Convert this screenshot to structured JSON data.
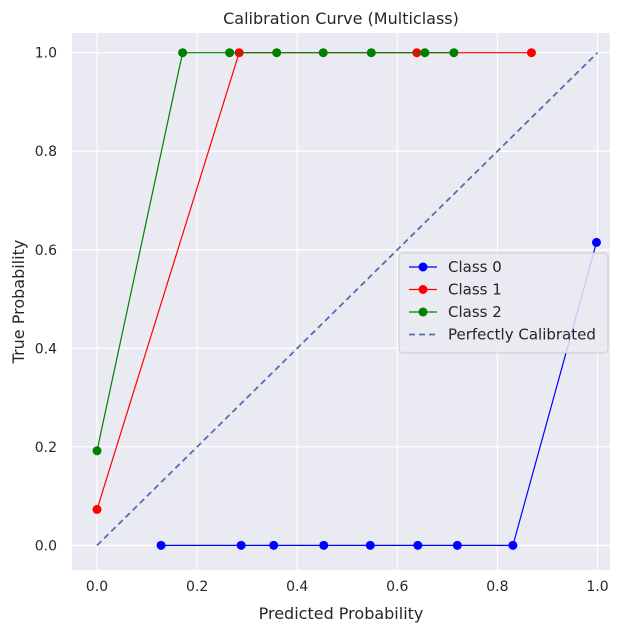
{
  "chart_data": {
    "type": "line",
    "title": "Calibration Curve (Multiclass)",
    "xlabel": "Predicted Probability",
    "ylabel": "True Probability",
    "xlim": [
      -0.05,
      1.025
    ],
    "ylim": [
      -0.05,
      1.04
    ],
    "xticks": [
      "0.0",
      "0.2",
      "0.4",
      "0.6",
      "0.8",
      "1.0"
    ],
    "yticks": [
      "0.0",
      "0.2",
      "0.4",
      "0.6",
      "0.8",
      "1.0"
    ],
    "grid": true,
    "legend_position": "center-right",
    "series": [
      {
        "name": "Class 0",
        "color": "#0000ff",
        "marker": "circle",
        "x": [
          0.128,
          0.288,
          0.353,
          0.453,
          0.546,
          0.641,
          0.72,
          0.831,
          0.998
        ],
        "y": [
          0.0,
          0.0,
          0.0,
          0.0,
          0.0,
          0.0,
          0.0,
          0.0,
          0.615
        ]
      },
      {
        "name": "Class 1",
        "color": "#ff0000",
        "marker": "circle",
        "x": [
          0.0,
          0.284,
          0.639,
          0.868
        ],
        "y": [
          0.073,
          1.0,
          1.0,
          1.0
        ]
      },
      {
        "name": "Class 2",
        "color": "#008000",
        "marker": "circle",
        "x": [
          0.0,
          0.171,
          0.265,
          0.359,
          0.452,
          0.548,
          0.655,
          0.713
        ],
        "y": [
          0.192,
          1.0,
          1.0,
          1.0,
          1.0,
          1.0,
          1.0,
          1.0
        ]
      },
      {
        "name": "Perfectly Calibrated",
        "color": "#4c72b0",
        "marker": "none",
        "dashed": true,
        "x": [
          0.0,
          1.0
        ],
        "y": [
          0.0,
          1.0
        ]
      }
    ]
  }
}
